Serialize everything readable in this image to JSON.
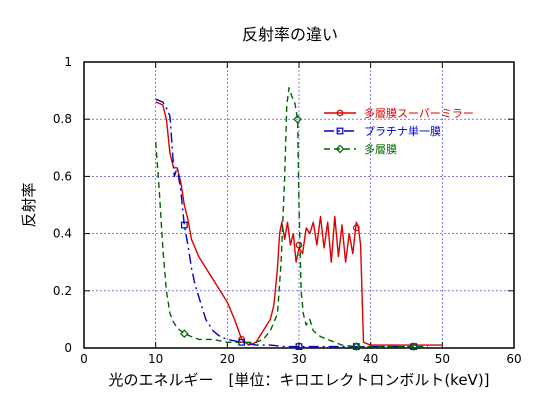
{
  "chart_data": {
    "type": "line",
    "title": "反射率の違い",
    "xlabel": "光のエネルギー　[単位：キロエレクトロンボルト(keV)]",
    "ylabel": "反射率",
    "xlim": [
      0,
      60
    ],
    "ylim": [
      0,
      1
    ],
    "xticks": [
      0,
      10,
      20,
      30,
      40,
      50,
      60
    ],
    "yticks": [
      0,
      0.2,
      0.4,
      0.6,
      0.8,
      1
    ],
    "ytick_labels": [
      "0",
      "0.2",
      "0.4",
      "0.6",
      "0.8",
      "1"
    ],
    "grid": true,
    "legend_position": "top-right",
    "series": [
      {
        "name": "多層膜スーパーミラー",
        "color": "#dd0000",
        "dash": "solid",
        "marker": "circle",
        "x": [
          10,
          11,
          11.5,
          12,
          12.5,
          13,
          13.5,
          14,
          14.5,
          15,
          16,
          17,
          18,
          19,
          20,
          21,
          22,
          23,
          24,
          25,
          26,
          26.5,
          27,
          27.3,
          27.6,
          28,
          28.4,
          28.8,
          29.2,
          29.6,
          30,
          30.5,
          31,
          31.5,
          32,
          32.5,
          33,
          33.5,
          34,
          34.5,
          35,
          35.5,
          36,
          36.5,
          37,
          37.5,
          38,
          38.3,
          38.6,
          39,
          40,
          42,
          44,
          46,
          48,
          50
        ],
        "y": [
          0.86,
          0.85,
          0.8,
          0.68,
          0.63,
          0.63,
          0.58,
          0.5,
          0.45,
          0.38,
          0.32,
          0.28,
          0.24,
          0.2,
          0.16,
          0.1,
          0.03,
          0.01,
          0.02,
          0.06,
          0.1,
          0.15,
          0.28,
          0.4,
          0.44,
          0.38,
          0.44,
          0.36,
          0.4,
          0.3,
          0.35,
          0.33,
          0.42,
          0.4,
          0.44,
          0.36,
          0.46,
          0.35,
          0.44,
          0.3,
          0.46,
          0.32,
          0.43,
          0.3,
          0.4,
          0.33,
          0.44,
          0.42,
          0.36,
          0.02,
          0.01,
          0.01,
          0.01,
          0.01,
          0.01,
          0.01
        ],
        "marker_x": [
          22,
          30,
          38
        ],
        "marker_y": [
          0.03,
          0.36,
          0.42
        ]
      },
      {
        "name": "プラチナ単一膜",
        "color": "#0000cc",
        "dash": "10,4,2,4",
        "marker": "square",
        "x": [
          10,
          11,
          11.5,
          12,
          12.3,
          12.6,
          13,
          13.5,
          14,
          14.5,
          15,
          15.5,
          16,
          17,
          18,
          19,
          20,
          22,
          24,
          26,
          28,
          30,
          34,
          38,
          42,
          46
        ],
        "y": [
          0.87,
          0.86,
          0.84,
          0.81,
          0.7,
          0.6,
          0.63,
          0.55,
          0.43,
          0.36,
          0.28,
          0.22,
          0.18,
          0.1,
          0.06,
          0.04,
          0.03,
          0.02,
          0.01,
          0.01,
          0.005,
          0.005,
          0.005,
          0.005,
          0.005,
          0.005
        ],
        "marker_x": [
          14,
          22,
          30,
          38,
          46
        ],
        "marker_y": [
          0.43,
          0.02,
          0.005,
          0.005,
          0.005
        ]
      },
      {
        "name": "多層膜",
        "color": "#006600",
        "dash": "6,4",
        "marker": "diamond",
        "x": [
          10,
          10.5,
          11,
          11.5,
          12,
          12.5,
          13,
          13.5,
          14,
          15,
          16,
          18,
          20,
          22,
          24,
          25,
          26,
          27,
          27.5,
          28,
          28.3,
          28.6,
          29,
          29.4,
          29.8,
          30,
          30.3,
          30.6,
          31,
          31.5,
          32,
          33,
          34,
          36,
          38,
          40,
          44,
          48
        ],
        "y": [
          0.72,
          0.55,
          0.35,
          0.2,
          0.12,
          0.09,
          0.07,
          0.06,
          0.05,
          0.04,
          0.03,
          0.03,
          0.02,
          0.02,
          0.02,
          0.03,
          0.06,
          0.12,
          0.3,
          0.6,
          0.85,
          0.91,
          0.88,
          0.86,
          0.8,
          0.5,
          0.2,
          0.12,
          0.08,
          0.1,
          0.06,
          0.04,
          0.03,
          0.01,
          0.005,
          0.005,
          0.005,
          0.005
        ],
        "marker_x": [
          14,
          29.8,
          38,
          46
        ],
        "marker_y": [
          0.05,
          0.8,
          0.005,
          0.005
        ]
      }
    ]
  }
}
